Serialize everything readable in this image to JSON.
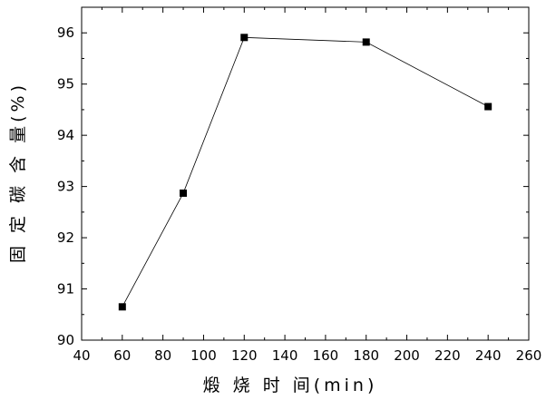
{
  "chart_data": {
    "type": "line",
    "title": "",
    "xlabel": "煅 烧 时 间(min)",
    "ylabel": "固 定 碳 含 量(%)",
    "xlim": [
      40,
      260
    ],
    "ylim": [
      90,
      96.5
    ],
    "x_ticks": [
      "40",
      "60",
      "80",
      "100",
      "120",
      "140",
      "160",
      "180",
      "200",
      "220",
      "240",
      "260"
    ],
    "y_ticks": [
      "90",
      "91",
      "92",
      "93",
      "94",
      "95",
      "96"
    ],
    "series": [
      {
        "x": [
          60,
          90,
          120,
          180,
          240
        ],
        "values": [
          90.65,
          92.87,
          95.91,
          95.82,
          94.56
        ],
        "marker": "square",
        "color": "#000000"
      }
    ],
    "grid": false,
    "legend": "none"
  }
}
